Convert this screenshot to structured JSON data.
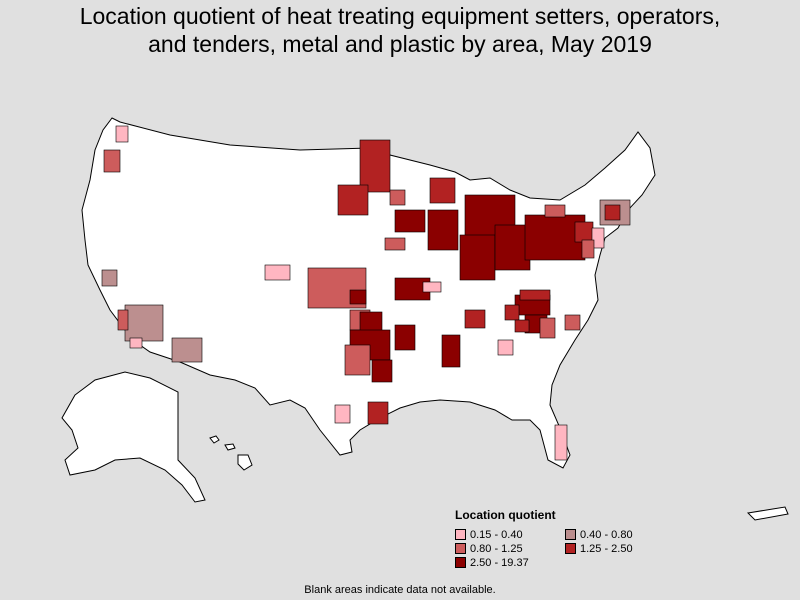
{
  "title_line1": "Location quotient of heat treating equipment setters, operators,",
  "title_line2": "and tenders, metal and plastic by area, May 2019",
  "legend": {
    "title": "Location quotient",
    "items": [
      {
        "label": "0.15 - 0.40",
        "color": "#ffb6c1"
      },
      {
        "label": "0.40 - 0.80",
        "color": "#bc8f8f"
      },
      {
        "label": "0.80 - 1.25",
        "color": "#cd5c5c"
      },
      {
        "label": "1.25 - 2.50",
        "color": "#b22222"
      },
      {
        "label": "2.50 - 19.37",
        "color": "#8b0000"
      }
    ]
  },
  "footnote": "Blank areas indicate data not available.",
  "colors": {
    "background": "#e0e0e0",
    "land": "#ffffff",
    "border": "#000000"
  }
}
